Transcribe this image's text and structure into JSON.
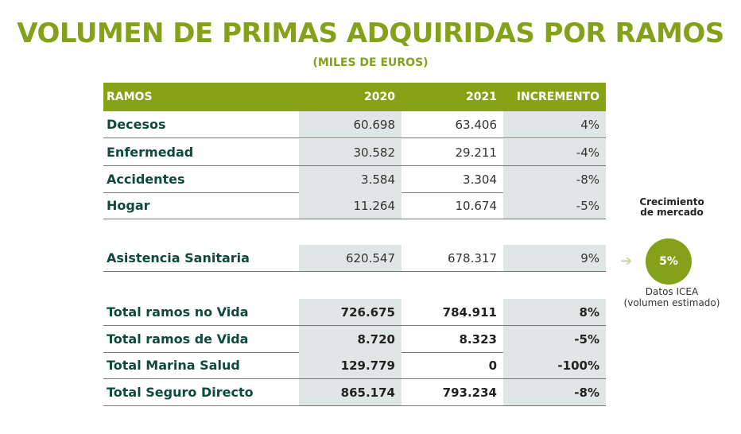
{
  "title": "VOLUMEN DE PRIMAS ADQUIRIDAS POR RAMOS",
  "subtitle": "(MILES DE EUROS)",
  "header": [
    "RAMOS",
    "2020",
    "2021",
    "INCREMENTO"
  ],
  "rows": [
    [
      "Decesos",
      "60.698",
      "63.406",
      "4%"
    ],
    [
      "Enfermedad",
      "30.582",
      "29.211",
      "-4%"
    ],
    [
      "Accidentes",
      "3.584",
      "3.304",
      "-8%"
    ],
    [
      "Hogar",
      "11.264",
      "10.674",
      "-5%"
    ],
    [
      "Asistencia Sanitaria",
      "620.547",
      "678.317",
      "9%"
    ],
    [
      "Total ramos no Vida",
      "726.675",
      "784.911",
      "8%"
    ],
    [
      "Total ramos de Vida",
      "8.720",
      "8.323",
      "-5%"
    ],
    [
      "Total Marina Salud",
      "129.779",
      "0",
      "-100%"
    ],
    [
      "Total Seguro Directo",
      "865.174",
      "793.234",
      "-8%"
    ]
  ],
  "market": {
    "heading_1": "Crecimiento",
    "heading_2": "de mercado",
    "value": "5%",
    "note_1": "Datos ICEA",
    "note_2": "(volumen estimado)",
    "arrow_icon": "arrow-right-icon"
  }
}
